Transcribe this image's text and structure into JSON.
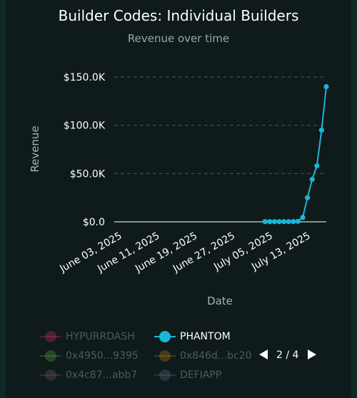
{
  "chart_data": {
    "type": "line",
    "title": "Builder Codes: Individual Builders",
    "subtitle": "Revenue over time",
    "xlabel": "Date",
    "ylabel": "Revenue",
    "x_ticks": [
      "June 03, 2025",
      "June 11, 2025",
      "June 19, 2025",
      "June 27, 2025",
      "July 05, 2025",
      "July 13, 2025"
    ],
    "y_ticks": [
      "$0.0",
      "$50.0K",
      "$100.0K",
      "$150.0K"
    ],
    "ylim": [
      0,
      150000
    ],
    "grid": true,
    "series": [
      {
        "name": "PHANTOM",
        "color": "#1ab6d6",
        "points": [
          {
            "x": "2025-07-04",
            "y": 200
          },
          {
            "x": "2025-07-05",
            "y": 200
          },
          {
            "x": "2025-07-06",
            "y": 200
          },
          {
            "x": "2025-07-07",
            "y": 200
          },
          {
            "x": "2025-07-08",
            "y": 200
          },
          {
            "x": "2025-07-09",
            "y": 200
          },
          {
            "x": "2025-07-10",
            "y": 300
          },
          {
            "x": "2025-07-11",
            "y": 500
          },
          {
            "x": "2025-07-12",
            "y": 4500
          },
          {
            "x": "2025-07-13",
            "y": 25000
          },
          {
            "x": "2025-07-14",
            "y": 44000
          },
          {
            "x": "2025-07-15",
            "y": 58000
          },
          {
            "x": "2025-07-16",
            "y": 95000
          },
          {
            "x": "2025-07-17",
            "y": 140000
          }
        ]
      }
    ]
  },
  "legend": {
    "items": [
      {
        "label": "HYPURRDASH",
        "color": "#c0315a",
        "active": false
      },
      {
        "label": "PHANTOM",
        "color": "#1ab6d6",
        "active": true
      },
      {
        "label": "0x4950...9395",
        "color": "#5a9a3a",
        "active": false
      },
      {
        "label": "0x846d...bc20",
        "color": "#b07a20",
        "active": false
      },
      {
        "label": "0x4c87...abb7",
        "color": "#6a5a54",
        "active": false
      },
      {
        "label": "DEFIAPP",
        "color": "#5a6a7a",
        "active": false
      }
    ],
    "page": "2 / 4"
  }
}
